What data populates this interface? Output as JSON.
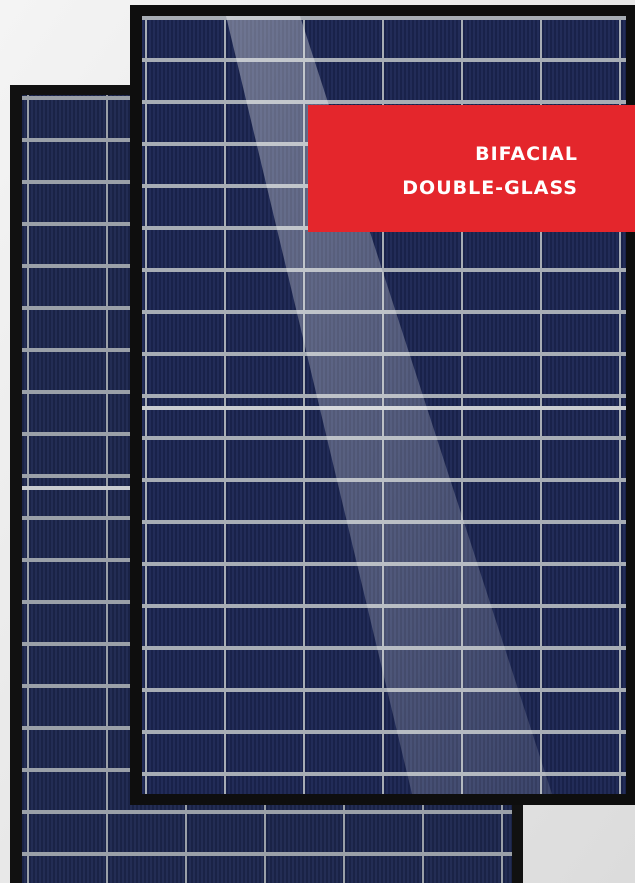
{
  "badge": {
    "lines": [
      "BIFACIAL",
      "DOUBLE-GLASS"
    ]
  }
}
